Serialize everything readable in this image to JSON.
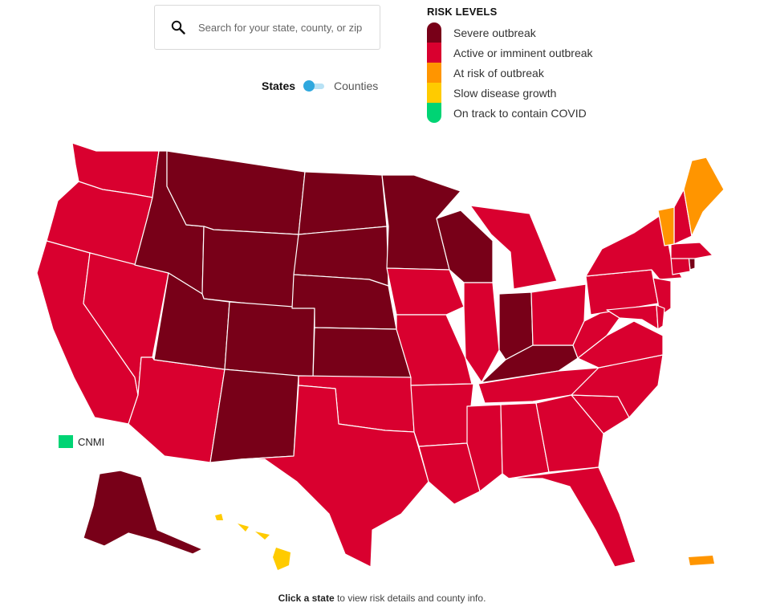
{
  "search": {
    "placeholder": "Search for your state, county, or zip",
    "icon": "search-icon"
  },
  "toggle": {
    "states_label": "States",
    "counties_label": "Counties",
    "selected": "States"
  },
  "legend": {
    "title": "RISK LEVELS",
    "items": [
      {
        "label": "Severe outbreak",
        "color": "#780018"
      },
      {
        "label": "Active or imminent outbreak",
        "color": "#d9002f"
      },
      {
        "label": "At risk of outbreak",
        "color": "#ff9500"
      },
      {
        "label": "Slow disease growth",
        "color": "#ffcb00"
      },
      {
        "label": "On track to contain COVID",
        "color": "#00d474"
      }
    ]
  },
  "map": {
    "states": [
      {
        "name": "Washington",
        "risk": "Active or imminent outbreak"
      },
      {
        "name": "Oregon",
        "risk": "Active or imminent outbreak"
      },
      {
        "name": "California",
        "risk": "Active or imminent outbreak"
      },
      {
        "name": "Nevada",
        "risk": "Active or imminent outbreak"
      },
      {
        "name": "Arizona",
        "risk": "Active or imminent outbreak"
      },
      {
        "name": "Idaho",
        "risk": "Severe outbreak"
      },
      {
        "name": "Montana",
        "risk": "Severe outbreak"
      },
      {
        "name": "Wyoming",
        "risk": "Severe outbreak"
      },
      {
        "name": "Utah",
        "risk": "Severe outbreak"
      },
      {
        "name": "Colorado",
        "risk": "Severe outbreak"
      },
      {
        "name": "New Mexico",
        "risk": "Severe outbreak"
      },
      {
        "name": "North Dakota",
        "risk": "Severe outbreak"
      },
      {
        "name": "South Dakota",
        "risk": "Severe outbreak"
      },
      {
        "name": "Nebraska",
        "risk": "Severe outbreak"
      },
      {
        "name": "Kansas",
        "risk": "Severe outbreak"
      },
      {
        "name": "Minnesota",
        "risk": "Severe outbreak"
      },
      {
        "name": "Wisconsin",
        "risk": "Severe outbreak"
      },
      {
        "name": "Indiana",
        "risk": "Severe outbreak"
      },
      {
        "name": "Kentucky",
        "risk": "Severe outbreak"
      },
      {
        "name": "Rhode Island",
        "risk": "Severe outbreak"
      },
      {
        "name": "Alaska",
        "risk": "Severe outbreak"
      },
      {
        "name": "Oklahoma",
        "risk": "Active or imminent outbreak"
      },
      {
        "name": "Texas",
        "risk": "Active or imminent outbreak"
      },
      {
        "name": "Iowa",
        "risk": "Active or imminent outbreak"
      },
      {
        "name": "Missouri",
        "risk": "Active or imminent outbreak"
      },
      {
        "name": "Arkansas",
        "risk": "Active or imminent outbreak"
      },
      {
        "name": "Louisiana",
        "risk": "Active or imminent outbreak"
      },
      {
        "name": "Illinois",
        "risk": "Active or imminent outbreak"
      },
      {
        "name": "Michigan",
        "risk": "Active or imminent outbreak"
      },
      {
        "name": "Ohio",
        "risk": "Active or imminent outbreak"
      },
      {
        "name": "Tennessee",
        "risk": "Active or imminent outbreak"
      },
      {
        "name": "Mississippi",
        "risk": "Active or imminent outbreak"
      },
      {
        "name": "Alabama",
        "risk": "Active or imminent outbreak"
      },
      {
        "name": "Georgia",
        "risk": "Active or imminent outbreak"
      },
      {
        "name": "Florida",
        "risk": "Active or imminent outbreak"
      },
      {
        "name": "South Carolina",
        "risk": "Active or imminent outbreak"
      },
      {
        "name": "North Carolina",
        "risk": "Active or imminent outbreak"
      },
      {
        "name": "Virginia",
        "risk": "Active or imminent outbreak"
      },
      {
        "name": "West Virginia",
        "risk": "Active or imminent outbreak"
      },
      {
        "name": "Pennsylvania",
        "risk": "Active or imminent outbreak"
      },
      {
        "name": "New York",
        "risk": "Active or imminent outbreak"
      },
      {
        "name": "New Jersey",
        "risk": "Active or imminent outbreak"
      },
      {
        "name": "Maryland",
        "risk": "Active or imminent outbreak"
      },
      {
        "name": "Delaware",
        "risk": "Active or imminent outbreak"
      },
      {
        "name": "Connecticut",
        "risk": "Active or imminent outbreak"
      },
      {
        "name": "Massachusetts",
        "risk": "Active or imminent outbreak"
      },
      {
        "name": "New Hampshire",
        "risk": "Active or imminent outbreak"
      },
      {
        "name": "Vermont",
        "risk": "At risk of outbreak"
      },
      {
        "name": "Maine",
        "risk": "At risk of outbreak"
      },
      {
        "name": "Puerto Rico",
        "risk": "At risk of outbreak"
      },
      {
        "name": "Hawaii",
        "risk": "Slow disease growth"
      },
      {
        "name": "CNMI",
        "risk": "On track to contain COVID"
      }
    ],
    "cnmi_label": "CNMI"
  },
  "footer": {
    "bold": "Click a state",
    "rest": " to view risk details and county info."
  }
}
